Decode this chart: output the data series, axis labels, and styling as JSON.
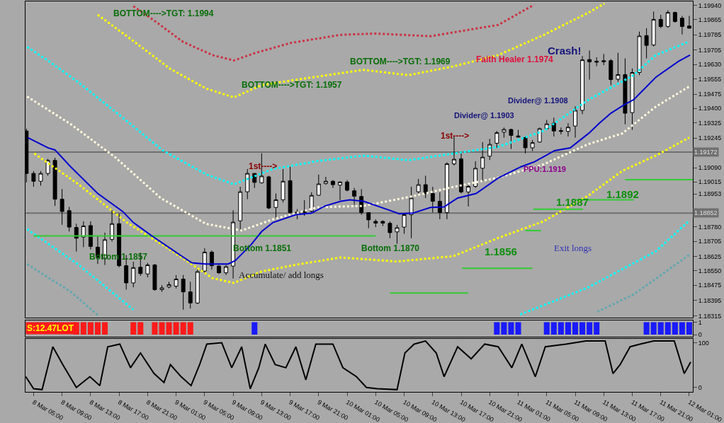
{
  "chart_data": [
    {
      "type": "candlestick",
      "xlim": [
        "--03-08T03:52",
        "--03-12T01:30"
      ],
      "ylim": [
        1.18305,
        1.1996
      ],
      "tick_labels": "y",
      "yticks": [
        {
          "value": 1.1994,
          "label": "1.19940"
        },
        1.19865,
        1.19785,
        1.19705,
        {
          "value": 1.1963,
          "label": "1.19630"
        },
        1.19555,
        1.19475,
        {
          "value": 1.194,
          "label": "1.19400"
        },
        1.19325,
        1.19245,
        {
          "value": 1.1909,
          "label": "1.19090"
        },
        1.19015,
        1.18953,
        {
          "value": 1.1878,
          "label": "1.18780"
        },
        1.18705,
        1.18625,
        {
          "value": 1.1855,
          "label": "1.18550"
        },
        1.18475,
        1.18395,
        1.18315
      ],
      "x": [
        "--03-08T04:00",
        "--03-08T05:00",
        "--03-08T06:00",
        "--03-08T07:00",
        "--03-08T08:00",
        "--03-08T09:00",
        "--03-08T10:00",
        "--03-08T11:00",
        "--03-08T12:00",
        "--03-08T13:00",
        "--03-08T14:00",
        "--03-08T15:00",
        "--03-08T16:00",
        "--03-08T17:00",
        "--03-08T18:00",
        "--03-08T19:00",
        "--03-08T20:00",
        "--03-08T21:00",
        "--03-08T22:00",
        "--03-08T23:00",
        "--03-09T00:00",
        "--03-09T01:00",
        "--03-09T02:00",
        "--03-09T03:00",
        "--03-09T04:00",
        "--03-09T05:00",
        "--03-09T06:00",
        "--03-09T07:00",
        "--03-09T08:00",
        "--03-09T09:00",
        "--03-09T10:00",
        "--03-09T11:00",
        "--03-09T12:00",
        "--03-09T13:00",
        "--03-09T14:00",
        "--03-09T15:00",
        "--03-09T16:00",
        "--03-09T17:00",
        "--03-09T18:00",
        "--03-09T19:00",
        "--03-09T20:00",
        "--03-09T21:00",
        "--03-09T22:00",
        "--03-09T23:00",
        "--03-10T00:00",
        "--03-10T01:00",
        "--03-10T02:00",
        "--03-10T03:00",
        "--03-10T04:00",
        "--03-10T05:00",
        "--03-10T06:00",
        "--03-10T07:00",
        "--03-10T08:00",
        "--03-10T09:00",
        "--03-10T10:00",
        "--03-10T11:00",
        "--03-10T12:00",
        "--03-10T13:00",
        "--03-10T14:00",
        "--03-10T15:00",
        "--03-10T16:00",
        "--03-10T17:00",
        "--03-10T18:00",
        "--03-10T19:00",
        "--03-10T20:00",
        "--03-10T21:00",
        "--03-10T22:00",
        "--03-10T23:00",
        "--03-11T00:00",
        "--03-11T01:00",
        "--03-11T02:00",
        "--03-11T03:00",
        "--03-11T04:00",
        "--03-11T05:00",
        "--03-11T06:00",
        "--03-11T07:00",
        "--03-11T08:00",
        "--03-11T09:00",
        "--03-11T10:00",
        "--03-11T11:00",
        "--03-11T12:00",
        "--03-11T13:00",
        "--03-11T14:00",
        "--03-11T15:00",
        "--03-11T16:00",
        "--03-11T17:00",
        "--03-11T18:00",
        "--03-11T19:00",
        "--03-11T20:00",
        "--03-11T21:00",
        "--03-11T22:00",
        "--03-11T23:00",
        "--03-12T00:00",
        "--03-12T01:00"
      ],
      "ohlc": [
        [
          1.19282,
          1.19294,
          1.19013,
          1.1906
        ],
        [
          1.1906,
          1.19072,
          1.1899,
          1.19019
        ],
        [
          1.19019,
          1.19072,
          1.18996,
          1.1906
        ],
        [
          1.1906,
          1.19136,
          1.19048,
          1.19128
        ],
        [
          1.19128,
          1.19142,
          1.1889,
          1.18925
        ],
        [
          1.18925,
          1.18978,
          1.18791,
          1.18861
        ],
        [
          1.18865,
          1.18885,
          1.18756,
          1.18779
        ],
        [
          1.18777,
          1.18797,
          1.18651,
          1.18721
        ],
        [
          1.18727,
          1.18809,
          1.18674,
          1.18785
        ],
        [
          1.18787,
          1.18809,
          1.18662,
          1.18678
        ],
        [
          1.18674,
          1.18733,
          1.18586,
          1.18621
        ],
        [
          1.18616,
          1.1875,
          1.18581,
          1.18713
        ],
        [
          1.18715,
          1.18867,
          1.18703,
          1.18797
        ],
        [
          1.18797,
          1.18849,
          1.18569,
          1.18577
        ],
        [
          1.18577,
          1.18633,
          1.18452,
          1.18487
        ],
        [
          1.18487,
          1.18598,
          1.18464,
          1.18567
        ],
        [
          1.18569,
          1.18645,
          1.18524,
          1.18536
        ],
        [
          1.18534,
          1.18592,
          1.18516,
          1.18581
        ],
        [
          1.18581,
          1.18586,
          1.18446,
          1.18452
        ],
        [
          1.18452,
          1.18475,
          1.1844,
          1.18461
        ],
        [
          1.18466,
          1.18493,
          1.18458,
          1.18478
        ],
        [
          1.1847,
          1.18528,
          1.18458,
          1.18507
        ],
        [
          1.18507,
          1.18528,
          1.18347,
          1.1844
        ],
        [
          1.1844,
          1.18493,
          1.18353,
          1.18382
        ],
        [
          1.18382,
          1.18557,
          1.18376,
          1.18546
        ],
        [
          1.18549,
          1.18668,
          1.1854,
          1.18648
        ],
        [
          1.18648,
          1.18657,
          1.18557,
          1.18577
        ],
        [
          1.18575,
          1.18581,
          1.18534,
          1.1854
        ],
        [
          1.1854,
          1.18581,
          1.18528,
          1.18572
        ],
        [
          1.18575,
          1.18867,
          1.1851,
          1.18805
        ],
        [
          1.18812,
          1.1899,
          1.18756,
          1.18964
        ],
        [
          1.18964,
          1.19083,
          1.18925,
          1.1906
        ],
        [
          1.1906,
          1.1906,
          1.18984,
          1.19013
        ],
        [
          1.19011,
          1.19165,
          1.19007,
          1.19046
        ],
        [
          1.19042,
          1.19048,
          1.18873,
          1.18879
        ],
        [
          1.18882,
          1.18955,
          1.18826,
          1.18922
        ],
        [
          1.18922,
          1.19083,
          1.18908,
          1.19019
        ],
        [
          1.19022,
          1.19095,
          1.18838,
          1.18855
        ],
        [
          1.18858,
          1.18873,
          1.1882,
          1.18854
        ],
        [
          1.18855,
          1.1892,
          1.18838,
          1.18863
        ],
        [
          1.18863,
          1.18961,
          1.18855,
          1.18945
        ],
        [
          1.18946,
          1.19054,
          1.18943,
          1.19005
        ],
        [
          1.19007,
          1.19042,
          1.19001,
          1.19019
        ],
        [
          1.19019,
          1.19025,
          1.18984,
          1.19001
        ],
        [
          1.18999,
          1.19019,
          1.1892,
          1.19015
        ],
        [
          1.19015,
          1.19025,
          1.18966,
          1.18972
        ],
        [
          1.18969,
          1.18984,
          1.18896,
          1.18941
        ],
        [
          1.18939,
          1.18978,
          1.18844,
          1.18855
        ],
        [
          1.18855,
          1.18855,
          1.18773,
          1.18817
        ],
        [
          1.18809,
          1.1882,
          1.18779,
          1.188
        ],
        [
          1.18809,
          1.18814,
          1.18785,
          1.188
        ],
        [
          1.18799,
          1.18809,
          1.18721,
          1.1875
        ],
        [
          1.18754,
          1.18791,
          1.18692,
          1.18776
        ],
        [
          1.18779,
          1.18849,
          1.18744,
          1.18844
        ],
        [
          1.18844,
          1.1899,
          1.18721,
          1.18931
        ],
        [
          1.18964,
          1.19031,
          1.18955,
          1.19001
        ],
        [
          1.19001,
          1.19048,
          1.18931,
          1.18955
        ],
        [
          1.18955,
          1.1899,
          1.18855,
          1.18914
        ],
        [
          1.18914,
          1.18961,
          1.1882,
          1.18855
        ],
        [
          1.18855,
          1.19118,
          1.1882,
          1.1911
        ],
        [
          1.1911,
          1.19253,
          1.19101,
          1.19134
        ],
        [
          1.19136,
          1.19171,
          1.18955,
          1.18963
        ],
        [
          1.18963,
          1.19001,
          1.18887,
          1.18992
        ],
        [
          1.18992,
          1.19124,
          1.18984,
          1.19087
        ],
        [
          1.19087,
          1.19224,
          1.19019,
          1.19145
        ],
        [
          1.1915,
          1.19241,
          1.1913,
          1.19212
        ],
        [
          1.19218,
          1.19282,
          1.19194,
          1.19273
        ],
        [
          1.19276,
          1.193,
          1.19247,
          1.1929
        ],
        [
          1.1929,
          1.19294,
          1.19188,
          1.19259
        ],
        [
          1.19256,
          1.19288,
          1.19247,
          1.1925
        ],
        [
          1.19247,
          1.19253,
          1.19165,
          1.19194
        ],
        [
          1.19194,
          1.19235,
          1.19177,
          1.19221
        ],
        [
          1.19224,
          1.193,
          1.19221,
          1.19294
        ],
        [
          1.19294,
          1.1934,
          1.19288,
          1.19319
        ],
        [
          1.19323,
          1.19352,
          1.19253,
          1.19282
        ],
        [
          1.19284,
          1.193,
          1.19264,
          1.1928
        ],
        [
          1.1928,
          1.19323,
          1.19253,
          1.19302
        ],
        [
          1.19308,
          1.19411,
          1.19247,
          1.1939
        ],
        [
          1.1939,
          1.19674,
          1.1937,
          1.19654
        ],
        [
          1.19656,
          1.19703,
          1.19551,
          1.19644
        ],
        [
          1.19647,
          1.19668,
          1.19621,
          1.19642
        ],
        [
          1.19644,
          1.19685,
          1.19627,
          1.1965
        ],
        [
          1.1965,
          1.19658,
          1.19522,
          1.19551
        ],
        [
          1.19553,
          1.19691,
          1.19539,
          1.19577
        ],
        [
          1.19577,
          1.19662,
          1.19317,
          1.19375
        ],
        [
          1.19378,
          1.19609,
          1.19288,
          1.19588
        ],
        [
          1.19588,
          1.19802,
          1.19574,
          1.19779
        ],
        [
          1.19781,
          1.1982,
          1.19662,
          1.1973
        ],
        [
          1.19732,
          1.19907,
          1.19724,
          1.19866
        ],
        [
          1.19866,
          1.1989,
          1.1982,
          1.19829
        ],
        [
          1.19829,
          1.19913,
          1.19822,
          1.19902
        ],
        [
          1.19902,
          1.19907,
          1.19849,
          1.19855
        ],
        [
          1.19872,
          1.19884,
          1.19787,
          1.19829
        ],
        [
          1.19831,
          1.19884,
          1.19817,
          1.1982
        ]
      ],
      "series": [
        {
          "type": "line",
          "color": "#cc3344",
          "line_style": "dotted",
          "x": [
            "--03-08T19:00",
            "--03-08T22:06",
            "--03-09T01:54",
            "--03-09T06:06",
            "--03-09T09:06",
            "--03-09T12:06",
            "--03-09T17:06",
            "--03-10T00:06",
            "--03-10T04:54",
            "--03-10T12:42",
            "--03-10T22:12",
            "--03-11T03:12"
          ],
          "values": [
            1.19935,
            1.19855,
            1.1975,
            1.19679,
            1.19651,
            1.1969,
            1.19743,
            1.19785,
            1.19792,
            1.19778,
            1.19837,
            1.19942
          ]
        },
        {
          "type": "line",
          "color": "#ffff00",
          "line_style": "dotted",
          "x": [
            "--03-08T14:00",
            "--03-08T18:06",
            "--03-09T00:06",
            "--03-09T05:12",
            "--03-09T09:06",
            "--03-09T13:00",
            "--03-09T17:48",
            "--03-10T03:18",
            "--03-10T09:36",
            "--03-10T15:54",
            "--03-10T22:12",
            "--03-11T04:36",
            "--03-11T10:48",
            "--03-11T13:06"
          ],
          "values": [
            1.1989,
            1.19778,
            1.19609,
            1.19504,
            1.19458,
            1.19522,
            1.1955,
            1.19602,
            1.19574,
            1.1962,
            1.19679,
            1.19785,
            1.199,
            1.19949
          ]
        },
        {
          "type": "line",
          "color": "#00ffff",
          "line_style": "dotted",
          "x": [
            "--03-08T04:06",
            "--03-08T07:00",
            "--03-08T11:12",
            "--03-08T17:06",
            "--03-08T23:06",
            "--03-09T05:12",
            "--03-09T09:06",
            "--03-09T14:36",
            "--03-09T20:54",
            "--03-10T03:18",
            "--03-10T09:36",
            "--03-10T15:54",
            "--03-10T22:12",
            "--03-11T04:36",
            "--03-11T10:48",
            "--03-11T17:12",
            "--03-11T20:18",
            "--03-12T01:00"
          ],
          "values": [
            1.19722,
            1.19651,
            1.19539,
            1.19364,
            1.19181,
            1.19055,
            1.19003,
            1.19083,
            1.19125,
            1.19153,
            1.19129,
            1.19164,
            1.19199,
            1.19283,
            1.19444,
            1.19574,
            1.19679,
            1.1975
          ]
        },
        {
          "type": "line",
          "color": "#fff8dc",
          "line_style": "dotted",
          "x": [
            "--03-08T04:06",
            "--03-08T10:12",
            "--03-08T16:30",
            "--03-08T22:48",
            "--03-09T05:12",
            "--03-09T10:12",
            "--03-09T14:36",
            "--03-09T20:54",
            "--03-10T03:18",
            "--03-10T09:36",
            "--03-10T15:54",
            "--03-10T22:12",
            "--03-11T04:36",
            "--03-11T10:48",
            "--03-11T15:36",
            "--03-11T20:18",
            "--03-12T01:00"
          ],
          "values": [
            1.19462,
            1.19318,
            1.19143,
            1.18932,
            1.18796,
            1.18761,
            1.1882,
            1.18883,
            1.1889,
            1.18936,
            1.18989,
            1.19038,
            1.19108,
            1.19213,
            1.19269,
            1.19409,
            1.19515
          ]
        },
        {
          "type": "line",
          "color": "#ffff00",
          "line_style": "dotted",
          "x": [
            "--03-08T05:06",
            "--03-08T11:12",
            "--03-08T18:06",
            "--03-09T00:06",
            "--03-09T06:06",
            "--03-09T09:06",
            "--03-09T13:00",
            "--03-09T17:48",
            "--03-10T00:06",
            "--03-10T08:00",
            "--03-10T15:54",
            "--03-10T22:12",
            "--03-11T04:36",
            "--03-11T10:48",
            "--03-11T15:36",
            "--03-11T20:18",
            "--03-12T01:00"
          ],
          "values": [
            1.19164,
            1.19006,
            1.18803,
            1.18662,
            1.18512,
            1.18487,
            1.18547,
            1.18582,
            1.1862,
            1.18599,
            1.18627,
            1.18722,
            1.1881,
            1.18943,
            1.19073,
            1.19153,
            1.19248
          ]
        },
        {
          "type": "line",
          "color": "#00ffff",
          "line_style": "dotted",
          "x": [
            "--03-08T04:06",
            "--03-08T11:12",
            "--03-08T19:00",
            "--03-10T02:00",
            "--03-11T01:18",
            "--03-11T10:48",
            "--03-11T20:18",
            "--03-12T01:00"
          ],
          "values": [
            1.18768,
            1.18585,
            1.18347,
            null,
            1.18322,
            1.18463,
            1.18652,
            1.18813
          ]
        },
        {
          "type": "line",
          "color": "#5fa8b0",
          "line_style": "dotted",
          "x": [
            "--03-08T04:06",
            "--03-08T10:12",
            "--03-08T14:00",
            "--03-10T02:00",
            "--03-11T12:06",
            "--03-11T17:12",
            "--03-12T01:00"
          ],
          "values": [
            1.18585,
            1.18441,
            1.18319,
            null,
            1.18336,
            1.18427,
            1.18634
          ]
        },
        {
          "type": "line",
          "color": "#33cc33",
          "x": [
            "--03-08T05:00",
            "--03-10T05:00"
          ],
          "values": [
            1.18733,
            1.18733
          ]
        },
        {
          "type": "line",
          "color": "#33cc33",
          "x": [
            "--03-10T07:00",
            "--03-10T18:00"
          ],
          "values": [
            1.18434,
            1.18434
          ]
        },
        {
          "type": "line",
          "color": "#33cc33",
          "x": [
            "--03-10T17:06",
            "--03-11T03:00"
          ],
          "values": [
            1.18564,
            1.18564
          ]
        },
        {
          "type": "line",
          "color": "#33cc33",
          "x": [
            "--03-11T02:00",
            "--03-11T04:12"
          ],
          "values": [
            1.18761,
            1.18761
          ]
        },
        {
          "type": "line",
          "color": "#33cc33",
          "x": [
            "--03-11T03:06",
            "--03-11T10:06"
          ],
          "values": [
            1.18873,
            1.18873
          ]
        },
        {
          "type": "line",
          "color": "#33cc33",
          "x": [
            "--03-11T09:06",
            "--03-11T17:12"
          ],
          "values": [
            1.18922,
            1.18922
          ]
        },
        {
          "type": "line",
          "color": "#33cc33",
          "x": [
            "--03-11T16:00",
            "--03-12T01:30"
          ],
          "values": [
            1.19027,
            1.19027
          ]
        },
        {
          "type": "line",
          "color": "#0000cd",
          "x": [
            "--03-08T04:12",
            "--03-08T07:00",
            "--03-08T08:00",
            "--03-08T10:12",
            "--03-08T14:00",
            "--03-08T17:30",
            "--03-08T19:00",
            "--03-08T21:36",
            "--03-09T00:24",
            "--03-09T03:12",
            "--03-09T05:06",
            "--03-09T08:18",
            "--03-09T09:18",
            "--03-09T11:30",
            "--03-09T13:00",
            "--03-09T14:36",
            "--03-09T17:48",
            "--03-09T20:00",
            "--03-09T21:54",
            "--03-10T00:06",
            "--03-10T01:24",
            "--03-10T03:18",
            "--03-10T07:24",
            "--03-10T08:18",
            "--03-10T10:12",
            "--03-10T12:42",
            "--03-10T14:36",
            "--03-10T16:30",
            "--03-10T19:06",
            "--03-10T22:12",
            "--03-11T01:24",
            "--03-11T03:18",
            "--03-11T06:06",
            "--03-11T08:18",
            "--03-11T10:54",
            "--03-11T12:24",
            "--03-11T14:00",
            "--03-11T15:54",
            "--03-11T17:12",
            "--03-11T20:18",
            "--03-11T23:30",
            "--03-12T01:06"
          ],
          "values": [
            1.19247,
            1.19194,
            1.19183,
            1.19095,
            1.18955,
            1.18861,
            1.18803,
            1.18733,
            1.18662,
            1.18592,
            1.18586,
            1.18586,
            1.18604,
            1.18686,
            1.18756,
            1.18803,
            1.18844,
            1.18852,
            1.1889,
            1.18914,
            1.18922,
            1.18914,
            1.18861,
            1.18849,
            1.18852,
            1.18882,
            1.18885,
            1.18931,
            1.18955,
            1.19036,
            1.19095,
            1.19121,
            1.19179,
            1.19194,
            1.1927,
            1.19323,
            1.19375,
            1.1942,
            1.19446,
            1.19563,
            1.19647,
            1.19679
          ]
        }
      ],
      "ref_lines": [
        {
          "axis": "y",
          "value": 1.19172,
          "label": "1.19172",
          "color": "#707070"
        },
        {
          "axis": "y",
          "value": 1.18852,
          "label": "1.18852",
          "color": "#707070"
        }
      ],
      "annotations": [
        "BOTTOM---->TGT: 1.1994",
        "BOTTOM---->TGT: 1.1957",
        "BOTTOM---->TGT: 1.1969",
        "Bottom 1.1857",
        "Bottom 1.1851",
        "Bottom 1.1870",
        "1st---->",
        "1st---->",
        "Crash!",
        "Faith Healer 1.1974",
        "Divider@ 1.1908",
        "Divider@ 1.1903",
        "PPU:1.1919",
        "1.1892",
        "1.1887",
        "1.1856",
        "Accumulate/ add longs",
        "Exit longs"
      ]
    },
    {
      "type": "bar",
      "xlim": [
        "--03-08T03:52",
        "--03-12T01:30"
      ],
      "ylim": [
        -0.15,
        1.15
      ],
      "yticks": [
        0,
        1
      ],
      "tick_labels": "y",
      "series": [
        {
          "color": "#ff1a1a",
          "x": [
            "--03-08T11:00",
            "--03-08T12:00",
            "--03-08T13:00",
            "--03-08T14:00",
            "--03-08T15:00",
            "--03-08T19:00",
            "--03-08T20:00",
            "--03-08T22:00",
            "--03-08T23:00",
            "--03-09T00:00",
            "--03-09T01:00",
            "--03-09T02:00",
            "--03-09T03:00"
          ],
          "values": [
            1,
            1,
            1,
            1,
            1,
            1,
            1,
            1,
            1,
            1,
            1,
            1,
            1
          ]
        },
        {
          "color": "#1a1aff",
          "x": [
            "--03-09T12:00",
            "--03-10T22:00",
            "--03-10T23:00",
            "--03-11T00:00",
            "--03-11T01:00",
            "--03-11T05:00",
            "--03-11T06:00",
            "--03-11T07:00",
            "--03-11T08:00",
            "--03-11T09:00",
            "--03-11T10:00",
            "--03-11T11:00",
            "--03-11T12:00",
            "--03-11T19:00",
            "--03-11T20:00",
            "--03-11T21:00",
            "--03-11T22:00",
            "--03-11T23:00",
            "--03-12T00:00",
            "--03-12T01:00"
          ],
          "values": [
            1,
            1,
            1,
            1,
            1,
            1,
            1,
            1,
            1,
            1,
            1,
            1,
            1,
            1,
            1,
            1,
            1,
            1,
            1,
            1
          ]
        }
      ],
      "annotations": [
        "S:12.47LOT"
      ]
    },
    {
      "type": "line",
      "xlim": [
        "--03-08T03:52",
        "--03-12T01:30"
      ],
      "ylim": [
        -10,
        108
      ],
      "yticks": [
        0,
        100
      ],
      "xticks": [
        {
          "value": "--03-08T05:00",
          "label": "8 Mar 05:00"
        },
        {
          "value": "--03-08T09:00",
          "label": "8 Mar 09:00"
        },
        {
          "value": "--03-08T13:00",
          "label": "8 Mar 13:00"
        },
        {
          "value": "--03-08T17:00",
          "label": "8 Mar 17:00"
        },
        {
          "value": "--03-08T21:00",
          "label": "8 Mar 21:00"
        },
        {
          "value": "--03-09T01:00",
          "label": "9 Mar 01:00"
        },
        {
          "value": "--03-09T05:00",
          "label": "9 Mar 05:00"
        },
        {
          "value": "--03-09T09:00",
          "label": "9 Mar 09:00"
        },
        {
          "value": "--03-09T13:00",
          "label": "9 Mar 13:00"
        },
        {
          "value": "--03-09T17:00",
          "label": "9 Mar 17:00"
        },
        {
          "value": "--03-09T21:00",
          "label": "9 Mar 21:00"
        },
        {
          "value": "--03-10T01:00",
          "label": "10 Mar 01:00"
        },
        {
          "value": "--03-10T05:00",
          "label": "10 Mar 05:00"
        },
        {
          "value": "--03-10T09:00",
          "label": "10 Mar 09:00"
        },
        {
          "value": "--03-10T13:00",
          "label": "10 Mar 13:00"
        },
        {
          "value": "--03-10T17:00",
          "label": "10 Mar 17:00"
        },
        {
          "value": "--03-10T21:00",
          "label": "10 Mar 21:00"
        },
        {
          "value": "--03-11T01:00",
          "label": "11 Mar 01:00"
        },
        {
          "value": "--03-11T05:00",
          "label": "11 Mar 05:00"
        },
        {
          "value": "--03-11T09:00",
          "label": "11 Mar 09:00"
        },
        {
          "value": "--03-11T13:00",
          "label": "11 Mar 13:00"
        },
        {
          "value": "--03-11T17:00",
          "label": "11 Mar 17:00"
        },
        {
          "value": "--03-11T21:00",
          "label": "11 Mar 21:00"
        },
        {
          "value": "--03-12T01:00",
          "label": "12 Mar 01:00"
        }
      ],
      "series": [
        {
          "color": "#000000",
          "x": [
            "--03-08T03:54",
            "--03-08T05:00",
            "--03-08T06:12",
            "--03-08T07:42",
            "--03-08T09:06",
            "--03-08T11:00",
            "--03-08T12:54",
            "--03-08T14:18",
            "--03-08T15:24",
            "--03-08T17:06",
            "--03-08T18:36",
            "--03-08T20:00",
            "--03-08T21:54",
            "--03-08T23:18",
            "--03-09T00:12",
            "--03-09T01:42",
            "--03-09T03:06",
            "--03-09T04:18",
            "--03-09T05:18",
            "--03-09T07:24",
            "--03-09T08:48",
            "--03-09T10:12",
            "--03-09T11:24",
            "--03-09T12:36",
            "--03-09T13:30",
            "--03-09T14:54",
            "--03-09T16:24",
            "--03-09T17:48",
            "--03-09T19:12",
            "--03-09T20:36",
            "--03-09T23:00",
            "--03-10T00:24",
            "--03-10T02:18",
            "--03-10T03:42",
            "--03-10T05:12",
            "--03-10T08:00",
            "--03-10T09:06",
            "--03-10T10:24",
            "--03-10T12:00",
            "--03-10T13:30",
            "--03-10T14:36",
            "--03-10T16:30",
            "--03-10T18:24",
            "--03-10T20:18",
            "--03-10T22:12",
            "--03-11T00:06",
            "--03-11T01:30",
            "--03-11T03:24",
            "--03-11T04:48",
            "--03-11T07:42",
            "--03-11T10:30",
            "--03-11T13:12",
            "--03-11T14:18",
            "--03-11T15:18",
            "--03-11T16:42",
            "--03-11T18:06",
            "--03-11T20:00",
            "--03-11T22:54",
            "--03-12T00:18",
            "--03-12T01:12"
          ],
          "values": [
            24,
            -3,
            -5,
            91,
            51,
            0,
            24,
            4,
            91,
            97,
            44,
            77,
            31,
            11,
            51,
            24,
            4,
            51,
            97,
            100,
            44,
            91,
            -3,
            44,
            97,
            51,
            44,
            91,
            17,
            97,
            97,
            44,
            24,
            0,
            -3,
            -5,
            77,
            97,
            104,
            77,
            24,
            91,
            64,
            97,
            91,
            44,
            97,
            24,
            91,
            97,
            104,
            104,
            31,
            51,
            91,
            97,
            104,
            104,
            31,
            57
          ]
        }
      ]
    }
  ]
}
